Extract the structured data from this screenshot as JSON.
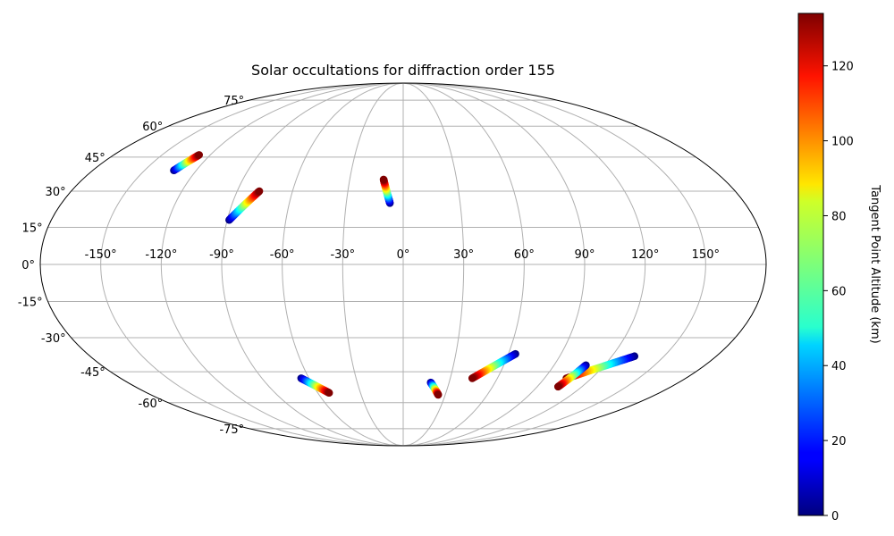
{
  "chart_data": {
    "type": "scatter",
    "projection": "mollweide",
    "title": "Solar occultations for diffraction order 155",
    "x_ticks": [
      "-150°",
      "-120°",
      "-90°",
      "-60°",
      "-30°",
      "0°",
      "30°",
      "60°",
      "90°",
      "120°",
      "150°"
    ],
    "y_ticks": [
      "-75°",
      "-60°",
      "-45°",
      "-30°",
      "-15°",
      "0°",
      "15°",
      "30°",
      "45°",
      "60°",
      "75°"
    ],
    "grid": true,
    "colorbar": {
      "label": "Tangent Point Altitude (km)",
      "colormap": "jet",
      "range": [
        0,
        134
      ],
      "ticks": [
        "0",
        "20",
        "40",
        "60",
        "80",
        "100",
        "120"
      ]
    },
    "series": [
      {
        "start": {
          "lon": -133,
          "lat": 39,
          "alt": 0
        },
        "end": {
          "lon": -127,
          "lat": 46,
          "alt": 134
        }
      },
      {
        "start": {
          "lon": -89,
          "lat": 18,
          "alt": 0
        },
        "end": {
          "lon": -78,
          "lat": 30,
          "alt": 134
        }
      },
      {
        "start": {
          "lon": -7,
          "lat": 25,
          "alt": 0
        },
        "end": {
          "lon": -11,
          "lat": 35,
          "alt": 134
        }
      },
      {
        "start": {
          "lon": -65,
          "lat": -48,
          "alt": 0
        },
        "end": {
          "lon": -52,
          "lat": -55,
          "alt": 134
        }
      },
      {
        "start": {
          "lon": 18,
          "lat": -50,
          "alt": 0
        },
        "end": {
          "lon": 25,
          "lat": -56,
          "alt": 134
        }
      },
      {
        "start": {
          "lon": 64,
          "lat": -37,
          "alt": 0
        },
        "end": {
          "lon": 44,
          "lat": -48,
          "alt": 134
        }
      },
      {
        "start": {
          "lon": 133,
          "lat": -38,
          "alt": 0
        },
        "end": {
          "lon": 104,
          "lat": -48,
          "alt": 134
        }
      },
      {
        "start": {
          "lon": 109,
          "lat": -42,
          "alt": 0
        },
        "end": {
          "lon": 104,
          "lat": -52,
          "alt": 134
        }
      }
    ]
  }
}
